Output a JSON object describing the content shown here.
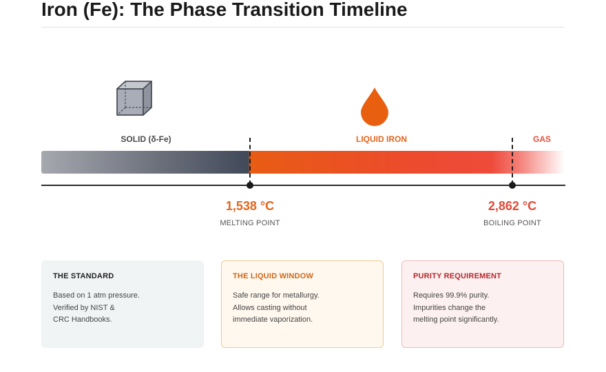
{
  "title": "Iron (Fe): The Phase Transition Timeline",
  "phases": {
    "solid": "SOLID (δ-Fe)",
    "liquid": "LIQUID IRON",
    "gas": "GAS"
  },
  "transitions": {
    "melting": {
      "temperature": "1,538 °C",
      "label": "MELTING POINT"
    },
    "boiling": {
      "temperature": "2,862 °C",
      "label": "BOILING POINT"
    }
  },
  "icons": {
    "solid": "cube-icon",
    "liquid": "droplet-icon"
  },
  "colors": {
    "solid": "#414a5a",
    "liquid": "#e85c14",
    "gas": "#e8513c",
    "liquid_card_title": "#d0661a",
    "purity_card_title": "#b8262b"
  },
  "cards": [
    {
      "title": "THE STANDARD",
      "lines": [
        "Based on 1 atm pressure.",
        "Verified by NIST &",
        "CRC Handbooks."
      ]
    },
    {
      "title": "THE LIQUID WINDOW",
      "lines": [
        "Safe range for metallurgy.",
        "Allows casting without",
        "immediate vaporization."
      ]
    },
    {
      "title": "PURITY REQUIREMENT",
      "lines": [
        "Requires 99.9% purity.",
        "Impurities change the",
        "melting point significantly."
      ]
    }
  ]
}
